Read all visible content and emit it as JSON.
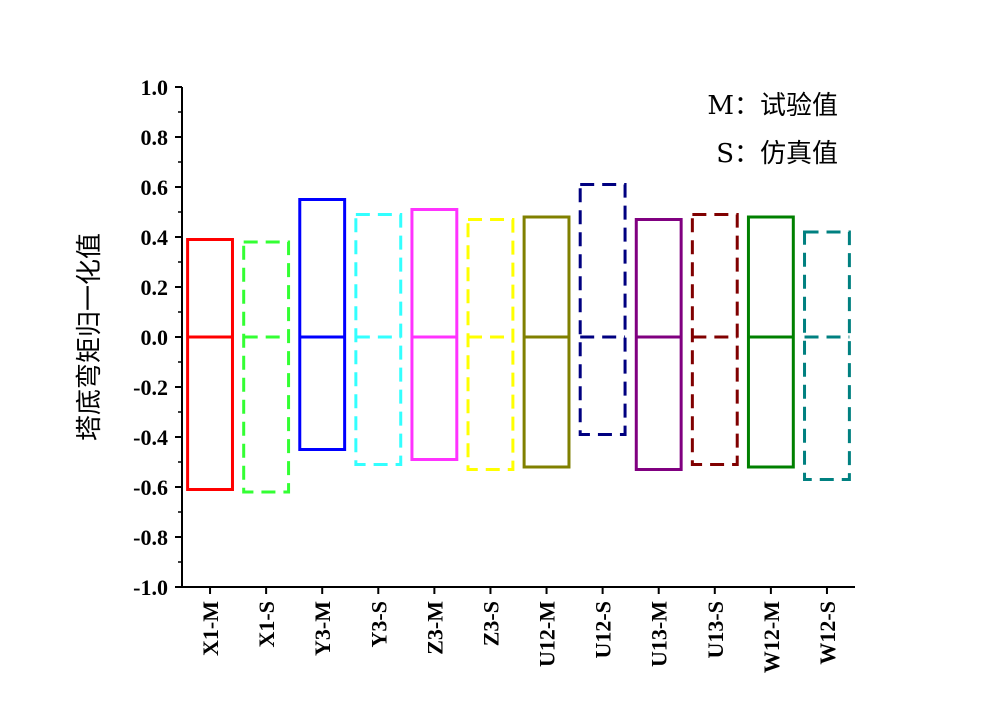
{
  "chart_data": {
    "type": "box",
    "ylabel": "塔底弯矩归一化值",
    "xlabel": "",
    "ylim": [
      -1.0,
      1.0
    ],
    "yticks": [
      "1.0",
      "0.8",
      "0.6",
      "0.4",
      "0.2",
      "0.0",
      "-0.2",
      "-0.4",
      "-0.6",
      "-0.8",
      "-1.0"
    ],
    "grid": false,
    "legend_position": "top-right",
    "legend": [
      {
        "key": "M",
        "text": "M：试验值"
      },
      {
        "key": "S",
        "text": "S：仿真值"
      }
    ],
    "categories": [
      "X1-M",
      "X1-S",
      "Y3-M",
      "Y3-S",
      "Z3-M",
      "Z3-S",
      "U12-M",
      "U12-S",
      "U13-M",
      "U13-S",
      "W12-M",
      "W12-S"
    ],
    "boxes": [
      {
        "label": "X1-M",
        "kind": "M",
        "upper": 0.39,
        "middle": 0.0,
        "lower": -0.61,
        "color": "#ff0000",
        "dashed": false
      },
      {
        "label": "X1-S",
        "kind": "S",
        "upper": 0.38,
        "middle": 0.0,
        "lower": -0.62,
        "color": "#33ff33",
        "dashed": true
      },
      {
        "label": "Y3-M",
        "kind": "M",
        "upper": 0.55,
        "middle": 0.0,
        "lower": -0.45,
        "color": "#0000ff",
        "dashed": false
      },
      {
        "label": "Y3-S",
        "kind": "S",
        "upper": 0.49,
        "middle": 0.0,
        "lower": -0.51,
        "color": "#33ffff",
        "dashed": true
      },
      {
        "label": "Z3-M",
        "kind": "M",
        "upper": 0.51,
        "middle": 0.0,
        "lower": -0.49,
        "color": "#ff33ff",
        "dashed": false
      },
      {
        "label": "Z3-S",
        "kind": "S",
        "upper": 0.47,
        "middle": 0.0,
        "lower": -0.53,
        "color": "#ffff00",
        "dashed": true
      },
      {
        "label": "U12-M",
        "kind": "M",
        "upper": 0.48,
        "middle": 0.0,
        "lower": -0.52,
        "color": "#808000",
        "dashed": false
      },
      {
        "label": "U12-S",
        "kind": "S",
        "upper": 0.61,
        "middle": 0.0,
        "lower": -0.39,
        "color": "#000080",
        "dashed": true
      },
      {
        "label": "U13-M",
        "kind": "M",
        "upper": 0.47,
        "middle": 0.0,
        "lower": -0.53,
        "color": "#800080",
        "dashed": false
      },
      {
        "label": "U13-S",
        "kind": "S",
        "upper": 0.49,
        "middle": 0.0,
        "lower": -0.51,
        "color": "#800000",
        "dashed": true
      },
      {
        "label": "W12-M",
        "kind": "M",
        "upper": 0.48,
        "middle": 0.0,
        "lower": -0.52,
        "color": "#008000",
        "dashed": false
      },
      {
        "label": "W12-S",
        "kind": "S",
        "upper": 0.42,
        "middle": 0.0,
        "lower": -0.57,
        "color": "#008080",
        "dashed": true
      }
    ]
  }
}
